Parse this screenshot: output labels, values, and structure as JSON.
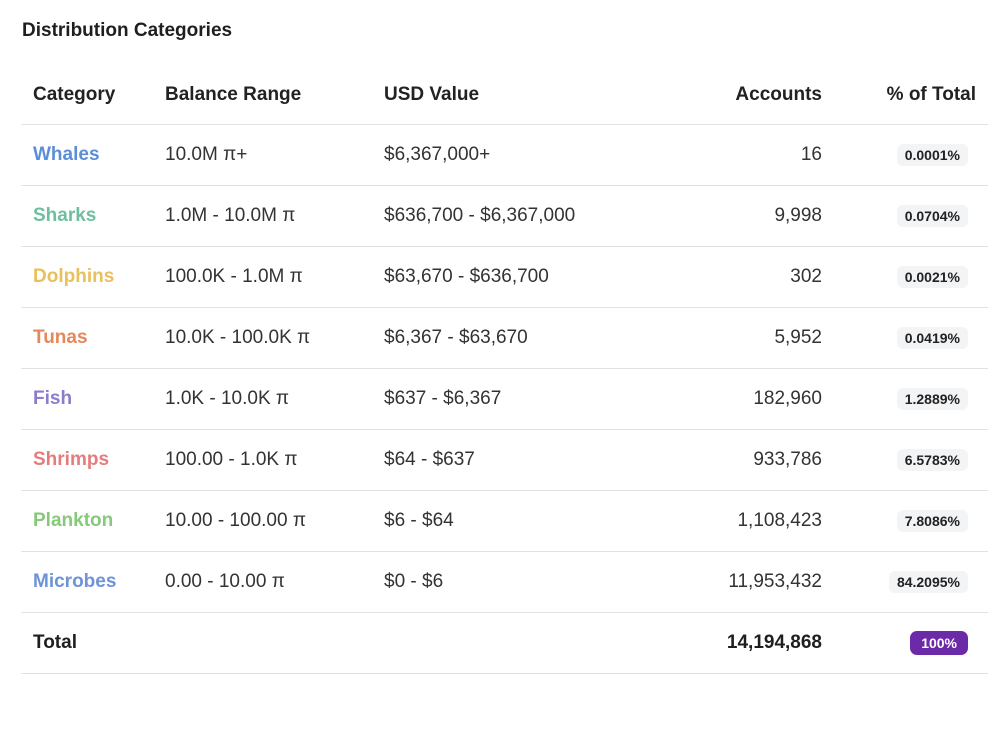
{
  "section": {
    "title": "Distribution Categories"
  },
  "table": {
    "headers": {
      "category": "Category",
      "balance_range": "Balance Range",
      "usd_value": "USD Value",
      "accounts": "Accounts",
      "percent_total": "% of Total"
    },
    "rows": [
      {
        "category": "Whales",
        "color": "#5b8dd9",
        "balance_range": "10.0M π+",
        "usd_value": "$6,367,000+",
        "accounts": "16",
        "percent": "0.0001%"
      },
      {
        "category": "Sharks",
        "color": "#6dbf9f",
        "balance_range": "1.0M - 10.0M π",
        "usd_value": "$636,700 - $6,367,000",
        "accounts": "9,998",
        "percent": "0.0704%"
      },
      {
        "category": "Dolphins",
        "color": "#e8c05c",
        "balance_range": "100.0K - 1.0M π",
        "usd_value": "$63,670 - $636,700",
        "accounts": "302",
        "percent": "0.0021%"
      },
      {
        "category": "Tunas",
        "color": "#e5885a",
        "balance_range": "10.0K - 100.0K π",
        "usd_value": "$6,367 - $63,670",
        "accounts": "5,952",
        "percent": "0.0419%"
      },
      {
        "category": "Fish",
        "color": "#8d7cc9",
        "balance_range": "1.0K - 10.0K π",
        "usd_value": "$637 - $6,367",
        "accounts": "182,960",
        "percent": "1.2889%"
      },
      {
        "category": "Shrimps",
        "color": "#e57c7c",
        "balance_range": "100.00 - 1.0K π",
        "usd_value": "$64 - $637",
        "accounts": "933,786",
        "percent": "6.5783%"
      },
      {
        "category": "Plankton",
        "color": "#86c97a",
        "balance_range": "10.00 - 100.00 π",
        "usd_value": "$6 - $64",
        "accounts": "1,108,423",
        "percent": "7.8086%"
      },
      {
        "category": "Microbes",
        "color": "#6d93d8",
        "balance_range": "0.00 - 10.00 π",
        "usd_value": "$0 - $6",
        "accounts": "11,953,432",
        "percent": "84.2095%"
      }
    ],
    "total": {
      "label": "Total",
      "accounts": "14,194,868",
      "percent": "100%",
      "badge_color": "#6b2aa8"
    }
  }
}
